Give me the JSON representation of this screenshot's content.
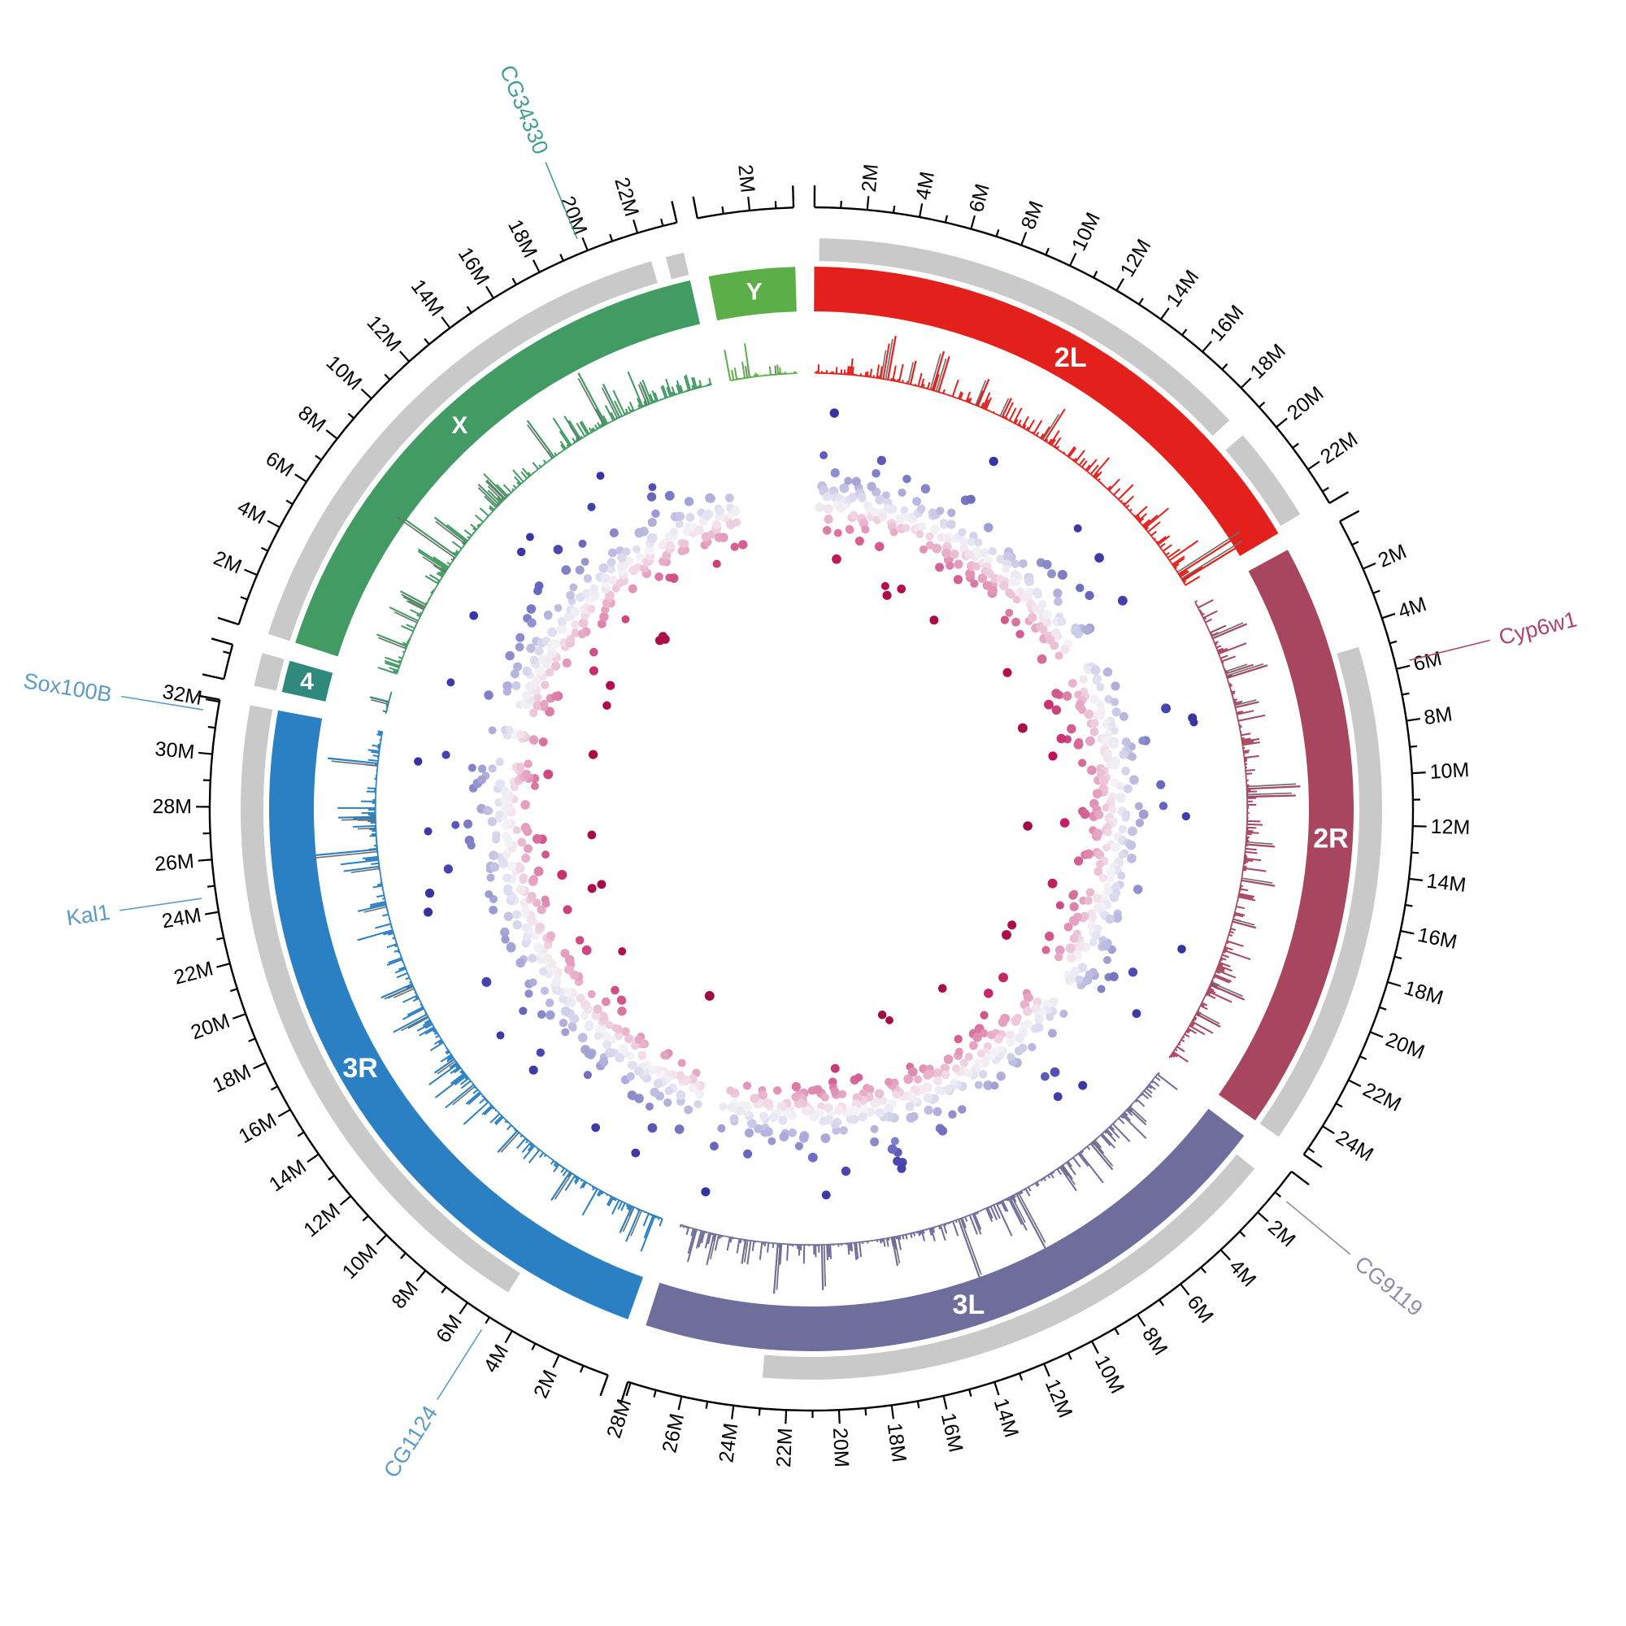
{
  "figure": {
    "kind": "circos-genome-plot",
    "background": "#ffffff",
    "axis_color": "#000000",
    "gray_band_color": "#c9c9c9",
    "twin_spike_color": "#6f6f6f",
    "chrom_label_color": "#ffffff"
  },
  "chart_data": {
    "type": "circos",
    "description": "Circular genome (Circos) plot with 7 chromosome ideogram arcs, outer megabase tick scale, partial gray annotation bands, an inward histogram track per chromosome (bars pointing outward from a thin baseline circle), and an inner scatter ring colored on a blue-white-red diverging scale (blue points outward, red points inward). Six gene callout labels sit outside the scale.",
    "ticks": {
      "major_mb": 2,
      "minor_mb": 1,
      "label_suffix": "M"
    },
    "chromosomes": [
      {
        "name": "2L",
        "size_mb": 23.513,
        "color": "#e3201b",
        "seed": 11,
        "has_scatter": true,
        "gray_segments_mb": [
          [
            0.2,
            18.6
          ],
          [
            19.4,
            23.3
          ]
        ],
        "hist_peaks": [
          [
            3.9,
            0.55
          ],
          [
            5.1,
            0.3
          ],
          [
            6.3,
            0.5
          ],
          [
            6.62,
            0.46
          ],
          [
            8.8,
            0.36
          ],
          [
            10.2,
            0.26
          ],
          [
            22.7,
            1.0
          ],
          [
            23.1,
            0.95
          ]
        ]
      },
      {
        "name": "2R",
        "size_mb": 25.287,
        "color": "#a8465f",
        "seed": 22,
        "has_scatter": true,
        "gray_segments_mb": [
          [
            4.8,
            25.287
          ]
        ],
        "hist_peaks": [
          [
            2.2,
            0.46
          ],
          [
            4.4,
            0.52
          ],
          [
            6.0,
            0.3
          ],
          [
            10.3,
            0.66
          ],
          [
            10.72,
            0.6
          ],
          [
            13.2,
            0.36
          ],
          [
            15.1,
            0.42
          ],
          [
            17.3,
            0.3
          ],
          [
            20.8,
            0.46
          ],
          [
            22.5,
            0.34
          ]
        ]
      },
      {
        "name": "3L",
        "size_mb": 28.11,
        "color": "#6f6d9b",
        "seed": 33,
        "has_scatter": true,
        "gray_segments_mb": [
          [
            0.8,
            23.0
          ]
        ],
        "hist_peaks": [
          [
            2.5,
            0.3
          ],
          [
            5.2,
            0.42
          ],
          [
            9.9,
            0.76
          ],
          [
            13.2,
            0.8
          ],
          [
            16.8,
            0.36
          ],
          [
            20.5,
            0.56
          ],
          [
            22.8,
            0.62
          ],
          [
            24.5,
            0.3
          ]
        ]
      },
      {
        "name": "3R",
        "size_mb": 32.079,
        "color": "#2b7fc3",
        "seed": 44,
        "has_scatter": true,
        "gray_segments_mb": [
          [
            4.9,
            32.079
          ]
        ],
        "hist_peaks": [
          [
            1.8,
            0.36
          ],
          [
            5.5,
            0.42
          ],
          [
            9.0,
            0.36
          ],
          [
            14.0,
            0.3
          ],
          [
            18.5,
            0.42
          ],
          [
            25.8,
            0.9
          ],
          [
            27.5,
            0.46
          ],
          [
            30.3,
            0.62
          ]
        ]
      },
      {
        "name": "4",
        "size_mb": 1.348,
        "color": "#2f8a7d",
        "seed": 55,
        "has_scatter": true,
        "gray_segments_mb": [
          [
            0.0,
            1.348
          ]
        ],
        "hist_peaks": [
          [
            0.7,
            0.24
          ]
        ]
      },
      {
        "name": "X",
        "size_mb": 23.542,
        "color": "#419b62",
        "seed": 66,
        "has_scatter": true,
        "gray_segments_mb": [
          [
            0.0,
            22.2
          ],
          [
            22.8,
            23.542
          ]
        ],
        "hist_peaks": [
          [
            1.6,
            0.4
          ],
          [
            4.0,
            0.36
          ],
          [
            7.0,
            0.96
          ],
          [
            7.9,
            0.5
          ],
          [
            10.5,
            0.36
          ],
          [
            14.3,
            0.56
          ],
          [
            17.5,
            0.72
          ],
          [
            18.3,
            0.46
          ],
          [
            20.0,
            0.3
          ]
        ]
      },
      {
        "name": "Y",
        "size_mb": 3.667,
        "color": "#5cae49",
        "seed": 77,
        "has_scatter": false,
        "gray_segments_mb": [],
        "hist_peaks": [
          [
            1.1,
            0.16
          ],
          [
            2.6,
            0.12
          ]
        ]
      }
    ],
    "gene_labels": [
      {
        "text": "CG34330",
        "chrom": "X",
        "pos_mb": 19.8,
        "color": "#45a08b"
      },
      {
        "text": "Cyp6w1",
        "chrom": "2R",
        "pos_mb": 5.8,
        "color": "#ae4468"
      },
      {
        "text": "CG9119",
        "chrom": "3L",
        "pos_mb": 1.0,
        "color": "#8e8cab"
      },
      {
        "text": "CG1124",
        "chrom": "3R",
        "pos_mb": 5.0,
        "color": "#5b9ac9"
      },
      {
        "text": "Kal1",
        "chrom": "3R",
        "pos_mb": 24.6,
        "color": "#5b9ac9"
      },
      {
        "text": "Sox100B",
        "chrom": "3R",
        "pos_mb": 31.6,
        "color": "#5b9ac9"
      }
    ],
    "scatter_track": {
      "direction": "blue points outward, red points inward of white mid-band",
      "palette_stops": [
        [
          -115,
          "#9e0a40"
        ],
        [
          -70,
          "#bb1054"
        ],
        [
          -40,
          "#d45e92"
        ],
        [
          -18,
          "#e9b4cc"
        ],
        [
          -6,
          "#f3e3ec"
        ],
        [
          0,
          "#f4f3f5"
        ],
        [
          6,
          "#ecebf5"
        ],
        [
          18,
          "#cccbe8"
        ],
        [
          40,
          "#8e8dcc"
        ],
        [
          70,
          "#4a47b0"
        ],
        [
          115,
          "#35319e"
        ]
      ],
      "notable_points": [
        [
          "2R",
          23.3,
          -90
        ],
        [
          "3L",
          15.3,
          74
        ],
        [
          "3L",
          15.45,
          81
        ],
        [
          "3L",
          15.6,
          71
        ],
        [
          "2L",
          13.0,
          -98
        ],
        [
          "X",
          12.5,
          -95
        ],
        [
          "3R",
          20.0,
          -88
        ]
      ]
    },
    "histogram_track": {
      "direction": "bars point outward from baseline circle toward the ideogram",
      "tall_peaks_have_gray_twin": true
    }
  }
}
